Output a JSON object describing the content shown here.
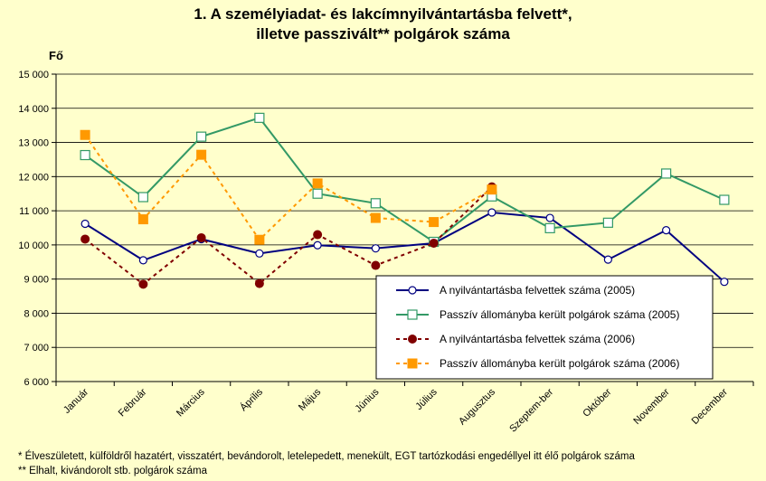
{
  "chart_data": {
    "type": "line",
    "title": [
      "1. A személyiadat- és lakcímnyilvántartásba felvett*,",
      "illetve passzivált** polgárok száma"
    ],
    "ylabel": "Fő",
    "ylim": [
      6000,
      15000
    ],
    "yticks": [
      "6 000",
      "7 000",
      "8 000",
      "9 000",
      "10 000",
      "11 000",
      "12 000",
      "13 000",
      "14 000",
      "15 000"
    ],
    "ytick_values": [
      6000,
      7000,
      8000,
      9000,
      10000,
      11000,
      12000,
      13000,
      14000,
      15000
    ],
    "categories": [
      "Január",
      "Február",
      "Március",
      "Április",
      "Május",
      "Június",
      "Július",
      "Augusztus",
      "Szeptem-ber",
      "Október",
      "November",
      "December"
    ],
    "grid": true,
    "legend_position": "bottom-right",
    "series": [
      {
        "name": "A nyilvántartásba felvettek száma (2005)",
        "color": "#000080",
        "style": "solid",
        "marker": "circle-open",
        "values": [
          10620,
          9550,
          10170,
          9750,
          9990,
          9900,
          10050,
          10950,
          10790,
          9570,
          10430,
          8920
        ]
      },
      {
        "name": "Passzív állományba került polgárok száma (2005)",
        "color": "#339966",
        "style": "solid",
        "marker": "square-open",
        "values": [
          12630,
          11400,
          13170,
          13720,
          11500,
          11220,
          10090,
          11420,
          10490,
          10650,
          12090,
          11320
        ]
      },
      {
        "name": "A nyilvántartásba felvettek száma (2006)",
        "color": "#800000",
        "style": "dashed",
        "marker": "circle-filled",
        "values": [
          10170,
          8850,
          10210,
          8870,
          10300,
          9400,
          10050,
          11700,
          null,
          null,
          null,
          null
        ]
      },
      {
        "name": "Passzív állományba került polgárok száma (2006)",
        "color": "#ff9900",
        "style": "dashed",
        "marker": "square-filled",
        "values": [
          13220,
          10750,
          12640,
          10150,
          11800,
          10790,
          10670,
          11620,
          null,
          null,
          null,
          null
        ]
      }
    ]
  },
  "footnotes": [
    "* Élveszületett, külföldről hazatért, visszatért, bevándorolt, letelepedett, menekült, EGT tartózkodási engedéllyel itt élő  polgárok száma",
    "** Elhalt, kivándorolt stb. polgárok száma"
  ]
}
